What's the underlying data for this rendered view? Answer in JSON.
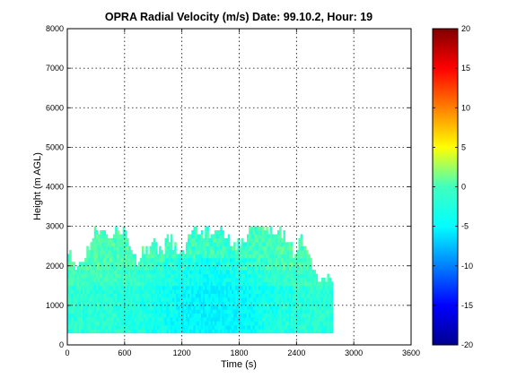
{
  "chart_data": {
    "type": "heatmap",
    "title": "OPRA Radial Velocity (m/s)  Date: 99.10.2, Hour: 19",
    "xlabel": "Time (s)",
    "ylabel": "Height (m AGL)",
    "xlim": [
      0,
      3600
    ],
    "ylim": [
      0,
      8000
    ],
    "x_ticks": [
      0,
      600,
      1200,
      1800,
      2400,
      3000,
      3600
    ],
    "y_ticks": [
      0,
      1000,
      2000,
      3000,
      4000,
      5000,
      6000,
      7000,
      8000
    ],
    "grid": true,
    "colormap": "jet",
    "color_range": [
      -20,
      20
    ],
    "colorbar_ticks": [
      -20,
      -15,
      -10,
      -5,
      0,
      5,
      10,
      15,
      20
    ],
    "data_extent": {
      "time_start": 0,
      "time_end": 2780,
      "height_start": 300,
      "height_top_max": 3000
    },
    "approx_velocity_range": [
      -6,
      0
    ],
    "column_tops": [
      [
        0,
        2350
      ],
      [
        90,
        2000
      ],
      [
        170,
        2000
      ],
      [
        230,
        2600
      ],
      [
        280,
        2950
      ],
      [
        340,
        2800
      ],
      [
        400,
        2850
      ],
      [
        460,
        2600
      ],
      [
        520,
        2950
      ],
      [
        600,
        2800
      ],
      [
        660,
        2350
      ],
      [
        720,
        2100
      ],
      [
        780,
        2400
      ],
      [
        850,
        2300
      ],
      [
        920,
        2550
      ],
      [
        980,
        2250
      ],
      [
        1050,
        2750
      ],
      [
        1100,
        2500
      ],
      [
        1150,
        2300
      ],
      [
        1200,
        2200
      ],
      [
        1260,
        2650
      ],
      [
        1320,
        2900
      ],
      [
        1380,
        2750
      ],
      [
        1440,
        2850
      ],
      [
        1500,
        2650
      ],
      [
        1560,
        2900
      ],
      [
        1620,
        2950
      ],
      [
        1680,
        2700
      ],
      [
        1740,
        2450
      ],
      [
        1800,
        2550
      ],
      [
        1860,
        2700
      ],
      [
        1920,
        2950
      ],
      [
        1980,
        2950
      ],
      [
        2040,
        2800
      ],
      [
        2100,
        2850
      ],
      [
        2160,
        2650
      ],
      [
        2230,
        2900
      ],
      [
        2300,
        2500
      ],
      [
        2370,
        2300
      ],
      [
        2430,
        2650
      ],
      [
        2500,
        2200
      ],
      [
        2560,
        1900
      ],
      [
        2620,
        1650
      ],
      [
        2700,
        1650
      ],
      [
        2780,
        1500
      ]
    ]
  },
  "colors": {
    "dominant": "#33e0c0",
    "strong_negative": "#00b8ff",
    "grid": "#000000"
  }
}
